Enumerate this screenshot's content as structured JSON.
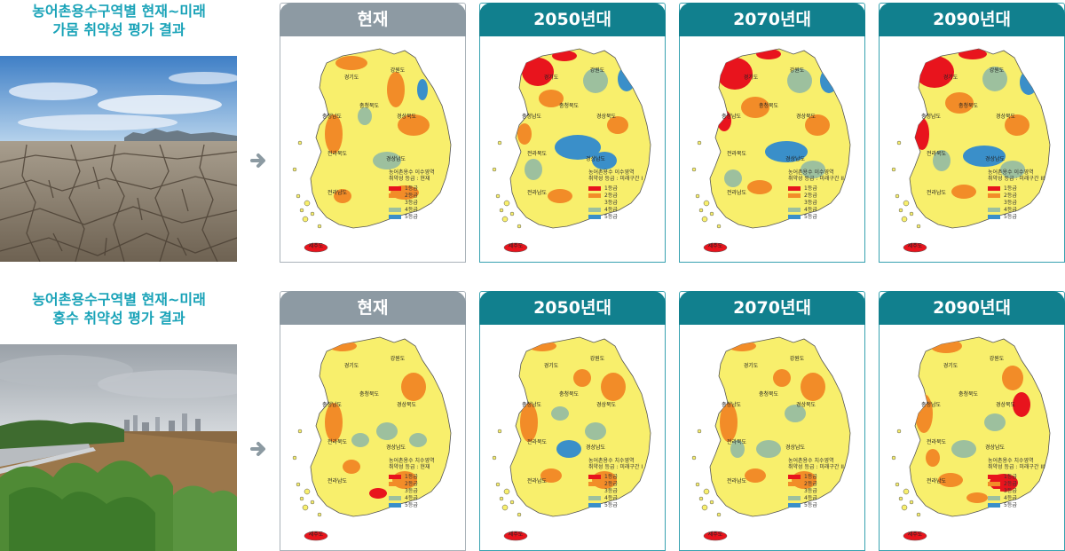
{
  "sections": [
    {
      "id": "drought",
      "title_line1": "농어촌용수구역별 현재~미래",
      "title_line2": "가뭄 취약성 평가 결과",
      "photo": "cracked-dry-ground-photo",
      "legend_title1": "농어촌용수 이수영역",
      "panels": [
        {
          "label": "현재",
          "legend_title2": "취약성 등급 : 현재"
        },
        {
          "label": "2050년대",
          "legend_title2": "취약성 등급 : 미래구간 I"
        },
        {
          "label": "2070년대",
          "legend_title2": "취약성 등급 : 미래구간 II"
        },
        {
          "label": "2090년대",
          "legend_title2": "취약성 등급 : 미래구간 III"
        }
      ]
    },
    {
      "id": "flood",
      "title_line1": "농어촌용수구역별 현재~미래",
      "title_line2": "홍수 취약성 평가 결과",
      "photo": "flooded-river-photo",
      "legend_title1": "농어촌용수 치수영역",
      "panels": [
        {
          "label": "현재",
          "legend_title2": "취약성 등급 : 현재"
        },
        {
          "label": "2050년대",
          "legend_title2": "취약성 등급 : 미래구간 I"
        },
        {
          "label": "2070년대",
          "legend_title2": "취약성 등급 : 미래구간 II"
        },
        {
          "label": "2090년대",
          "legend_title2": "취약성 등급 : 미래구간 III"
        }
      ]
    }
  ],
  "legend_grades": [
    {
      "label": "1등급",
      "color": "#e8141d"
    },
    {
      "label": "2등급",
      "color": "#f28c28"
    },
    {
      "label": "3등급",
      "color": "#f8ef6c"
    },
    {
      "label": "4등급",
      "color": "#9dc09e"
    },
    {
      "label": "5등급",
      "color": "#3a8fc9"
    }
  ],
  "region_labels": [
    "경기도",
    "강원도",
    "충청북도",
    "충청남도",
    "경상북도",
    "전라북도",
    "경상남도",
    "전라남도",
    "제주도"
  ],
  "colors": {
    "title_teal": "#1aa3b8",
    "header_current": "#8d9aa3",
    "header_future": "#11808e",
    "arrow": "#8c9aa2"
  }
}
